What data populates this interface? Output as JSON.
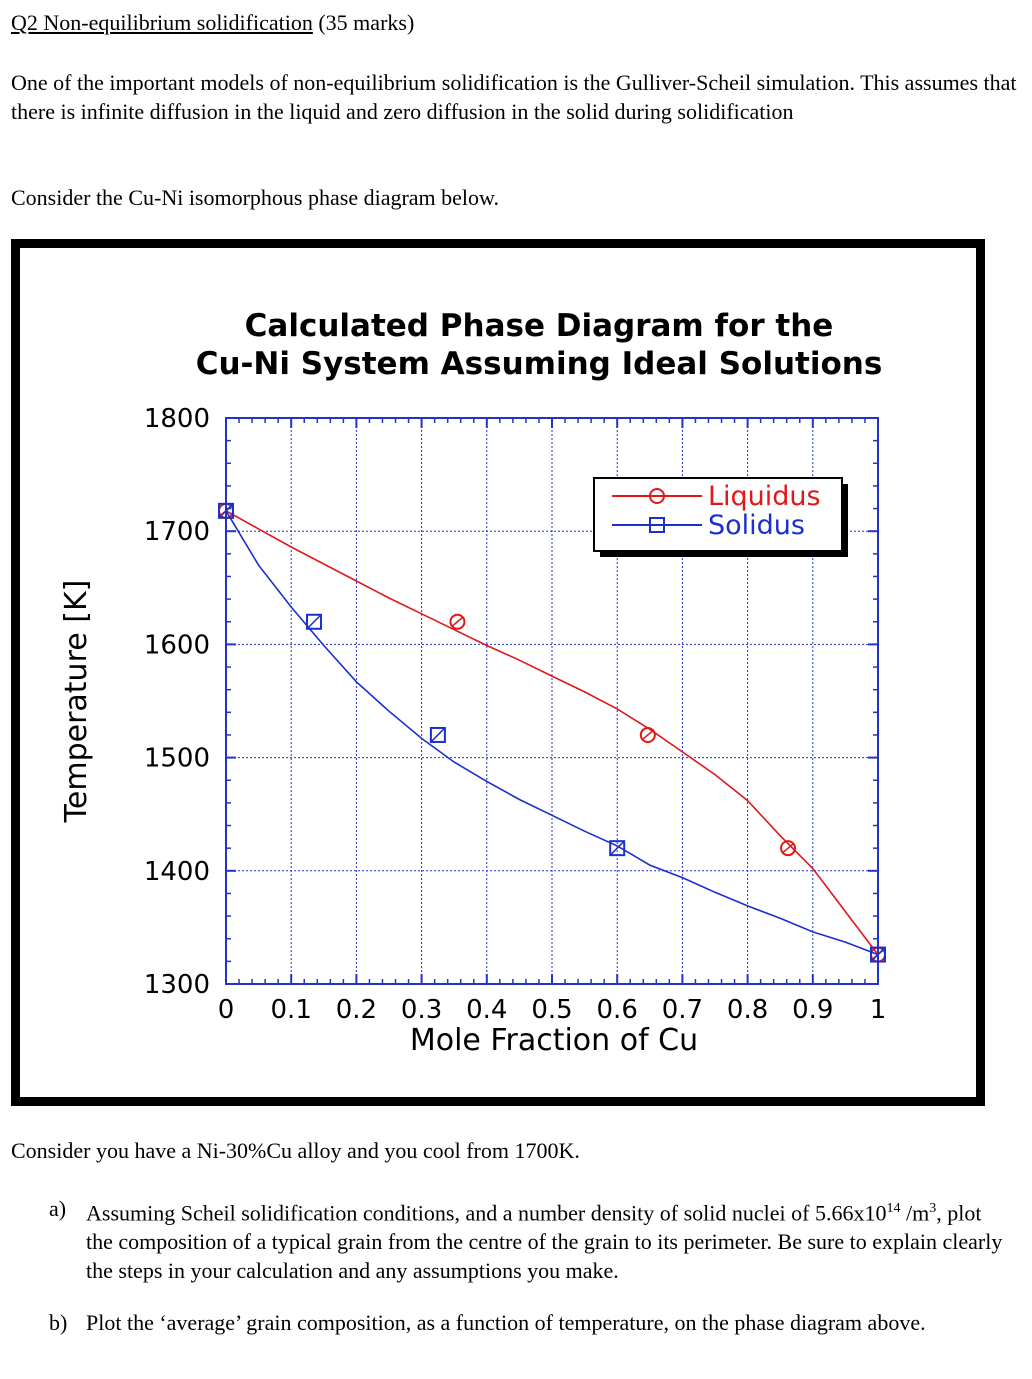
{
  "question": {
    "heading": "Q2 Non-equilibrium solidification",
    "marks": "(35 marks)",
    "intro": "One of the important models of non-equilibrium solidification is the Gulliver-Scheil simulation.  This assumes that there is infinite diffusion in the liquid and zero diffusion in the solid during solidification",
    "consider_diagram": "Consider the Cu-Ni isomorphous phase diagram below.",
    "consider_alloy": "Consider you have a Ni-30%Cu alloy and you cool from 1700K.",
    "parts": [
      {
        "label": "a)",
        "text_before": "Assuming Scheil solidification conditions, and a number density of solid nuclei of 5.66x10",
        "sup": "14",
        "text_middle": " /m",
        "sup2": "3",
        "text_after": ", plot the composition of a typical grain from the centre of the grain to its perimeter.  Be sure to explain clearly the steps in your calculation and any assumptions you make."
      },
      {
        "label": "b)",
        "text": "Plot the ‘average’ grain composition, as a function of temperature, on the phase diagram above."
      }
    ]
  },
  "chart_data": {
    "type": "line",
    "title_line1": "Calculated Phase Diagram for the",
    "title_line2": "Cu-Ni System Assuming Ideal Solutions",
    "xlabel": "Mole Fraction of Cu",
    "ylabel": "Temperature [K]",
    "xlim": [
      0,
      1
    ],
    "ylim": [
      1300,
      1800
    ],
    "xticks": [
      0,
      0.1,
      0.2,
      0.3,
      0.4,
      0.5,
      0.6,
      0.7,
      0.8,
      0.9,
      1
    ],
    "xtick_labels": [
      "0",
      "0.1",
      "0.2",
      "0.3",
      "0.4",
      "0.5",
      "0.6",
      "0.7",
      "0.8",
      "0.9",
      "1"
    ],
    "yticks": [
      1300,
      1400,
      1500,
      1600,
      1700,
      1800
    ],
    "ytick_labels": [
      "1300",
      "1400",
      "1500",
      "1600",
      "1700",
      "1800"
    ],
    "grid": true,
    "legend_position": "top-right",
    "series": [
      {
        "name": "Liquidus",
        "color": "#e01818",
        "marker": "circle",
        "x": [
          0,
          0.05,
          0.1,
          0.15,
          0.2,
          0.25,
          0.3,
          0.35,
          0.4,
          0.45,
          0.5,
          0.55,
          0.6,
          0.65,
          0.7,
          0.75,
          0.8,
          0.85,
          0.9,
          0.95,
          1
        ],
        "y": [
          1718,
          1702,
          1686,
          1671,
          1656,
          1641,
          1627,
          1613,
          1599,
          1586,
          1572,
          1558,
          1543,
          1525,
          1505,
          1485,
          1462,
          1431,
          1402,
          1364,
          1326
        ],
        "marker_x": [
          0,
          0.355,
          0.647,
          0.862,
          1
        ],
        "marker_y": [
          1718,
          1620,
          1520,
          1420,
          1326
        ]
      },
      {
        "name": "Solidus",
        "color": "#1a2fd0",
        "marker": "square",
        "x": [
          0,
          0.05,
          0.1,
          0.15,
          0.2,
          0.25,
          0.3,
          0.35,
          0.4,
          0.45,
          0.5,
          0.55,
          0.6,
          0.65,
          0.7,
          0.75,
          0.8,
          0.85,
          0.9,
          0.95,
          1
        ],
        "y": [
          1718,
          1670,
          1633,
          1599,
          1567,
          1541,
          1517,
          1496,
          1479,
          1463,
          1449,
          1435,
          1422,
          1405,
          1394,
          1381,
          1369,
          1358,
          1346,
          1337,
          1326
        ],
        "marker_x": [
          0,
          0.135,
          0.325,
          0.6,
          1
        ],
        "marker_y": [
          1718,
          1620,
          1520,
          1420,
          1326
        ]
      }
    ]
  }
}
